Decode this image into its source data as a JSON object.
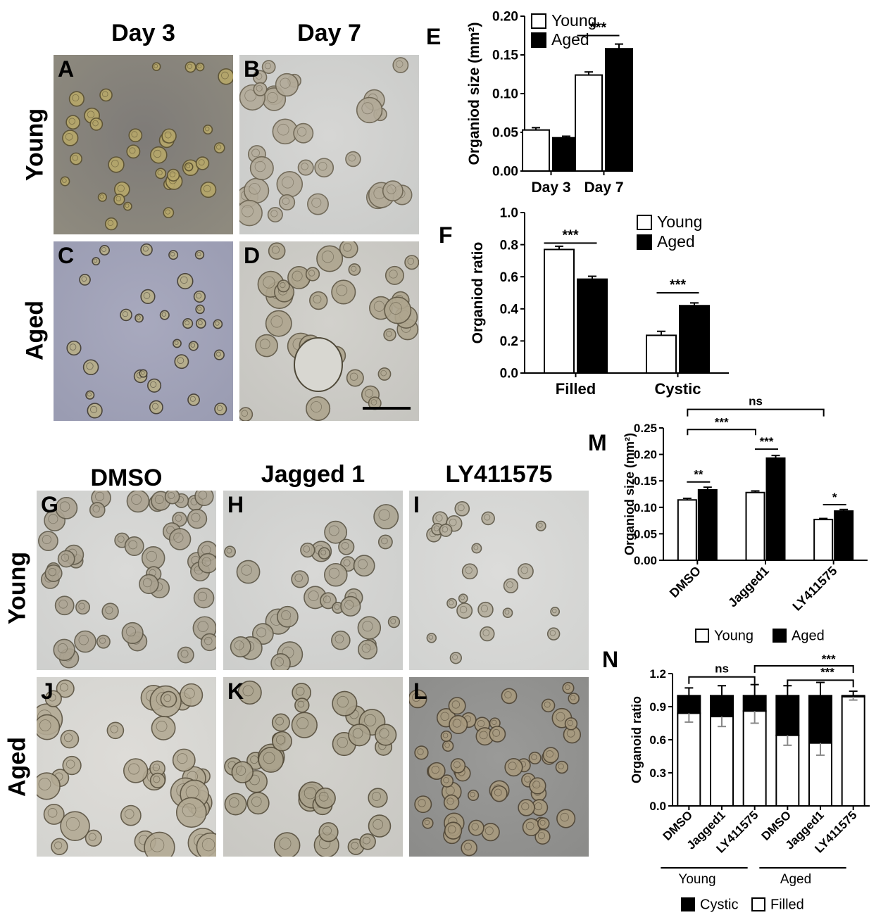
{
  "top": {
    "col_titles": [
      "Day 3",
      "Day 7"
    ],
    "row_titles": [
      "Young",
      "Aged"
    ],
    "panels": [
      "A",
      "B",
      "C",
      "D"
    ]
  },
  "bottom": {
    "col_titles": [
      "DMSO",
      "Jagged 1",
      "LY411575"
    ],
    "row_titles": [
      "Young",
      "Aged"
    ],
    "panels": [
      "G",
      "H",
      "I",
      "J",
      "K",
      "L"
    ]
  },
  "colors": {
    "young_bg": "#8e8a7e",
    "aged_bg_c": "#9a9cb2",
    "light_bg": "#c8c8c6",
    "dark_bg": "#8a8a88",
    "organoid_tan": "#a09680",
    "organoid_edge": "#4a4434"
  },
  "chart_data": [
    {
      "id": "E",
      "type": "bar",
      "label": "E",
      "categories": [
        "Day 3",
        "Day 7"
      ],
      "series": [
        {
          "name": "Young",
          "values": [
            0.053,
            0.124
          ],
          "errors": [
            0.003,
            0.004
          ],
          "fill": "#ffffff"
        },
        {
          "name": "Aged",
          "values": [
            0.043,
            0.158
          ],
          "errors": [
            0.002,
            0.006
          ],
          "fill": "#000000"
        }
      ],
      "ylabel": "Organiod size (mm²)",
      "ylim": [
        0,
        0.2
      ],
      "yticks": [
        "0.00",
        "0.05",
        "0.10",
        "0.15",
        "0.20"
      ],
      "legend": "top-left",
      "significance": [
        {
          "label": "***",
          "category": "Day 7"
        }
      ]
    },
    {
      "id": "F",
      "type": "bar",
      "label": "F",
      "categories": [
        "Filled",
        "Cystic"
      ],
      "series": [
        {
          "name": "Young",
          "values": [
            0.77,
            0.235
          ],
          "errors": [
            0.02,
            0.025
          ],
          "fill": "#ffffff"
        },
        {
          "name": "Aged",
          "values": [
            0.585,
            0.42
          ],
          "errors": [
            0.018,
            0.017
          ],
          "fill": "#000000"
        }
      ],
      "ylabel": "Organiod ratio",
      "ylim": [
        0,
        1.0
      ],
      "yticks": [
        "0.0",
        "0.2",
        "0.4",
        "0.6",
        "0.8",
        "1.0"
      ],
      "legend": "top-right",
      "significance": [
        {
          "label": "***",
          "category": "Filled"
        },
        {
          "label": "***",
          "category": "Cystic"
        }
      ]
    },
    {
      "id": "M",
      "type": "bar",
      "label": "M",
      "categories": [
        "DMSO",
        "Jagged1",
        "LY411575"
      ],
      "series": [
        {
          "name": "Young",
          "values": [
            0.114,
            0.128,
            0.077
          ],
          "errors": [
            0.003,
            0.003,
            0.002
          ],
          "fill": "#ffffff"
        },
        {
          "name": "Aged",
          "values": [
            0.133,
            0.193,
            0.093
          ],
          "errors": [
            0.005,
            0.005,
            0.003
          ],
          "fill": "#000000"
        }
      ],
      "ylabel": "Organiod size (mm²)",
      "ylim": [
        0,
        0.25
      ],
      "yticks": [
        "0.00",
        "0.05",
        "0.10",
        "0.15",
        "0.20",
        "0.25"
      ],
      "legend": "bottom",
      "significance": [
        {
          "label": "**",
          "category": "DMSO"
        },
        {
          "label": "***",
          "category": "Jagged1"
        },
        {
          "label": "*",
          "category": "LY411575"
        },
        {
          "label": "***",
          "between": [
            "DMSO",
            "Jagged1"
          ]
        },
        {
          "label": "ns",
          "between": [
            "DMSO",
            "LY411575"
          ]
        }
      ]
    },
    {
      "id": "N",
      "type": "bar",
      "label": "N",
      "stacked": true,
      "categories": [
        "DMSO",
        "Jagged1",
        "LY411575",
        "DMSO",
        "Jagged1",
        "LY411575"
      ],
      "groups": [
        {
          "name": "Young",
          "range": [
            0,
            2
          ]
        },
        {
          "name": "Aged",
          "range": [
            3,
            5
          ]
        }
      ],
      "series": [
        {
          "name": "Filled",
          "values": [
            0.84,
            0.81,
            0.86,
            0.64,
            0.57,
            0.99
          ],
          "errors": [
            0.08,
            0.09,
            0.11,
            0.09,
            0.11,
            0.03
          ],
          "fill": "#ffffff"
        },
        {
          "name": "Cystic",
          "values": [
            0.16,
            0.19,
            0.14,
            0.36,
            0.43,
            0.01
          ],
          "errors": [
            0.07,
            0.09,
            0.1,
            0.09,
            0.12,
            0.04
          ],
          "fill": "#000000"
        }
      ],
      "ylabel": "Organoid ratio",
      "ylim": [
        0,
        1.2
      ],
      "yticks": [
        "0.0",
        "0.3",
        "0.6",
        "0.9",
        "1.2"
      ],
      "legend_order": [
        "Cystic",
        "Filled"
      ],
      "legend": "bottom",
      "significance": [
        {
          "label": "ns",
          "between": [
            0,
            2
          ]
        },
        {
          "label": "***",
          "between": [
            2,
            5
          ]
        },
        {
          "label": "***",
          "between": [
            3,
            5
          ]
        }
      ]
    }
  ]
}
